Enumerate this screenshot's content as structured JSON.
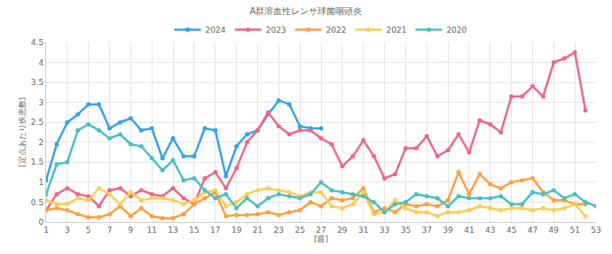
{
  "chart_data": {
    "type": "line",
    "title": "A群溶血性レンサ球菌咽頭炎",
    "x_label": "[週]",
    "y_label": "[定点あたり疾患数]",
    "x": [
      1,
      2,
      3,
      4,
      5,
      6,
      7,
      8,
      9,
      10,
      11,
      12,
      13,
      14,
      15,
      16,
      17,
      18,
      19,
      20,
      21,
      22,
      23,
      24,
      25,
      26,
      27,
      28,
      29,
      30,
      31,
      32,
      33,
      34,
      35,
      36,
      37,
      38,
      39,
      40,
      41,
      42,
      43,
      44,
      45,
      46,
      47,
      48,
      49,
      50,
      51,
      52,
      53
    ],
    "xlim": [
      1,
      53
    ],
    "xticks": [
      1,
      3,
      5,
      7,
      9,
      11,
      13,
      15,
      17,
      19,
      21,
      23,
      25,
      27,
      29,
      31,
      33,
      35,
      37,
      39,
      41,
      43,
      45,
      47,
      49,
      51,
      53
    ],
    "ylim": [
      0,
      4.5
    ],
    "yticks": [
      0,
      0.5,
      1,
      1.5,
      2,
      2.5,
      3,
      3.5,
      4,
      4.5
    ],
    "grid": true,
    "legend": "top",
    "marker": "circle",
    "series": [
      {
        "name": "2024",
        "color": "#36a2eb",
        "values": [
          1.05,
          1.95,
          2.5,
          2.7,
          2.95,
          2.95,
          2.35,
          2.5,
          2.6,
          2.3,
          2.35,
          1.6,
          2.1,
          1.65,
          1.65,
          2.35,
          2.3,
          1.15,
          1.9,
          2.2,
          2.3,
          2.7,
          3.05,
          2.95,
          2.4,
          2.35,
          2.35,
          null,
          null,
          null,
          null,
          null,
          null,
          null,
          null,
          null,
          null,
          null,
          null,
          null,
          null,
          null,
          null,
          null,
          null,
          null,
          null,
          null,
          null,
          null,
          null,
          null,
          null
        ]
      },
      {
        "name": "2023",
        "color": "#f0668a",
        "values": [
          0.3,
          0.7,
          0.85,
          0.7,
          0.65,
          0.4,
          0.8,
          0.85,
          0.65,
          0.8,
          0.7,
          0.65,
          0.85,
          0.6,
          0.45,
          1.1,
          1.25,
          0.85,
          1.35,
          2.0,
          2.3,
          2.75,
          2.4,
          2.2,
          2.3,
          2.3,
          2.1,
          1.95,
          1.4,
          1.65,
          2.05,
          1.65,
          1.1,
          1.2,
          1.85,
          1.85,
          2.15,
          1.65,
          1.8,
          2.2,
          1.75,
          2.55,
          2.45,
          2.25,
          3.15,
          3.15,
          3.4,
          3.15,
          4.0,
          4.1,
          4.25,
          2.8,
          null
        ]
      },
      {
        "name": "2022",
        "color": "#ff9f40",
        "values": [
          0.3,
          0.35,
          0.3,
          0.2,
          0.12,
          0.12,
          0.2,
          0.4,
          0.15,
          0.35,
          0.15,
          0.1,
          0.1,
          0.2,
          0.45,
          0.6,
          0.75,
          0.15,
          0.18,
          0.18,
          0.2,
          0.25,
          0.18,
          0.25,
          0.3,
          0.5,
          0.4,
          0.6,
          0.55,
          0.6,
          0.85,
          0.25,
          0.35,
          0.25,
          0.45,
          0.4,
          0.45,
          0.4,
          0.55,
          1.25,
          0.7,
          1.2,
          0.95,
          0.85,
          1.0,
          1.05,
          1.1,
          0.75,
          0.55,
          0.55,
          0.45,
          0.45,
          null
        ]
      },
      {
        "name": "2021",
        "color": "#ffcd56",
        "values": [
          0.55,
          0.45,
          0.45,
          0.6,
          0.55,
          0.85,
          0.7,
          0.45,
          0.75,
          0.55,
          0.6,
          0.6,
          0.55,
          0.45,
          0.55,
          0.75,
          0.8,
          0.4,
          0.5,
          0.7,
          0.8,
          0.85,
          0.8,
          0.75,
          0.65,
          0.75,
          0.75,
          0.4,
          0.35,
          0.45,
          0.75,
          0.2,
          0.25,
          0.55,
          0.35,
          0.25,
          0.25,
          0.15,
          0.25,
          0.25,
          0.3,
          0.4,
          0.35,
          0.3,
          0.35,
          0.35,
          0.3,
          0.35,
          0.3,
          0.35,
          0.45,
          0.15,
          null
        ]
      },
      {
        "name": "2020",
        "color": "#4bc0c0",
        "values": [
          0.7,
          1.45,
          1.5,
          2.3,
          2.45,
          2.3,
          2.1,
          2.2,
          1.95,
          1.9,
          1.6,
          1.3,
          1.55,
          1.05,
          1.1,
          0.8,
          0.6,
          0.7,
          0.35,
          0.6,
          0.4,
          0.6,
          0.7,
          0.65,
          0.6,
          0.7,
          1.0,
          0.8,
          0.75,
          0.7,
          0.65,
          0.5,
          0.25,
          0.45,
          0.5,
          0.7,
          0.65,
          0.6,
          0.4,
          0.65,
          0.6,
          0.6,
          0.6,
          0.65,
          0.45,
          0.45,
          0.75,
          0.7,
          0.8,
          0.6,
          0.7,
          0.5,
          0.4
        ]
      }
    ]
  }
}
